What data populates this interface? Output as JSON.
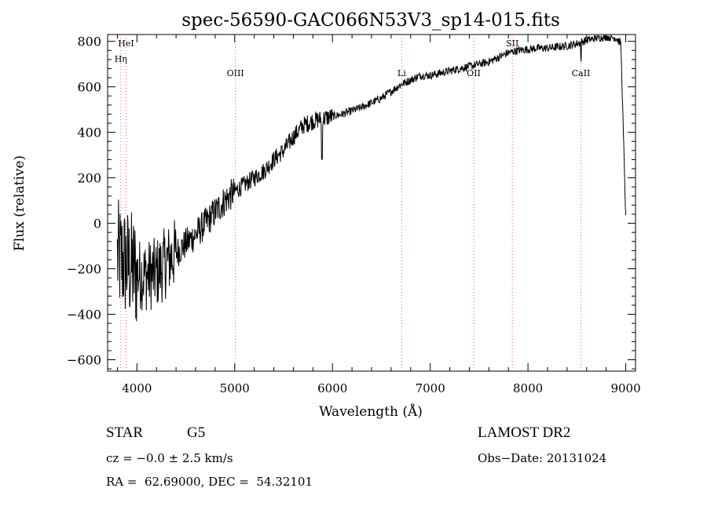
{
  "chart_data": {
    "type": "line",
    "title": "spec-56590-GAC066N53V3_sp14-015.fits",
    "xlabel": "Wavelength (Å)",
    "ylabel": "Flux (relative)",
    "xlim": [
      3700,
      9100
    ],
    "ylim": [
      -650,
      830
    ],
    "x_ticks": [
      4000,
      5000,
      6000,
      7000,
      8000,
      9000
    ],
    "y_ticks": [
      -600,
      -400,
      -200,
      0,
      200,
      400,
      600,
      800
    ],
    "grid": false,
    "series": [
      {
        "x": [
          3800,
          3900,
          4000,
          4100,
          4200,
          4300,
          4400,
          4500,
          4600,
          4700,
          4800,
          4900,
          5000,
          5100,
          5200,
          5300,
          5400,
          5500,
          5600,
          5700,
          5800,
          5900,
          6000,
          6100,
          6200,
          6300,
          6400,
          6500,
          6600,
          6700,
          6800,
          6900,
          7000,
          7100,
          7200,
          7300,
          7400,
          7500,
          7600,
          7700,
          7800,
          7900,
          8000,
          8100,
          8200,
          8300,
          8400,
          8500,
          8600,
          8700,
          8800,
          8900,
          8950,
          9000
        ],
        "y": [
          -150,
          -180,
          -220,
          -230,
          -220,
          -170,
          -130,
          -90,
          -50,
          0,
          50,
          100,
          140,
          170,
          200,
          230,
          280,
          320,
          380,
          430,
          450,
          460,
          470,
          480,
          495,
          510,
          530,
          550,
          580,
          610,
          630,
          650,
          650,
          660,
          670,
          680,
          690,
          700,
          710,
          730,
          750,
          760,
          765,
          770,
          770,
          775,
          780,
          790,
          805,
          815,
          820,
          815,
          790,
          20
        ]
      }
    ],
    "line_markers": [
      {
        "label": "HeI",
        "x": 3889
      },
      {
        "label": "Hη",
        "x": 3835
      },
      {
        "label": "OIII",
        "x": 5007
      },
      {
        "label": "Li",
        "x": 6708
      },
      {
        "label": "OII",
        "x": 7445
      },
      {
        "label": "SII",
        "x": 7840
      },
      {
        "label": "CaII",
        "x": 8542
      }
    ],
    "marker_color": "#e06060"
  },
  "info": {
    "object_type": "STAR",
    "subclass": "G5",
    "survey": "LAMOST DR2",
    "cz": "cz = −0.0 ± 2.5 km/s",
    "obs_date": "Obs−Date: 20131024",
    "coords": "RA =  62.69000, DEC =  54.32101"
  }
}
